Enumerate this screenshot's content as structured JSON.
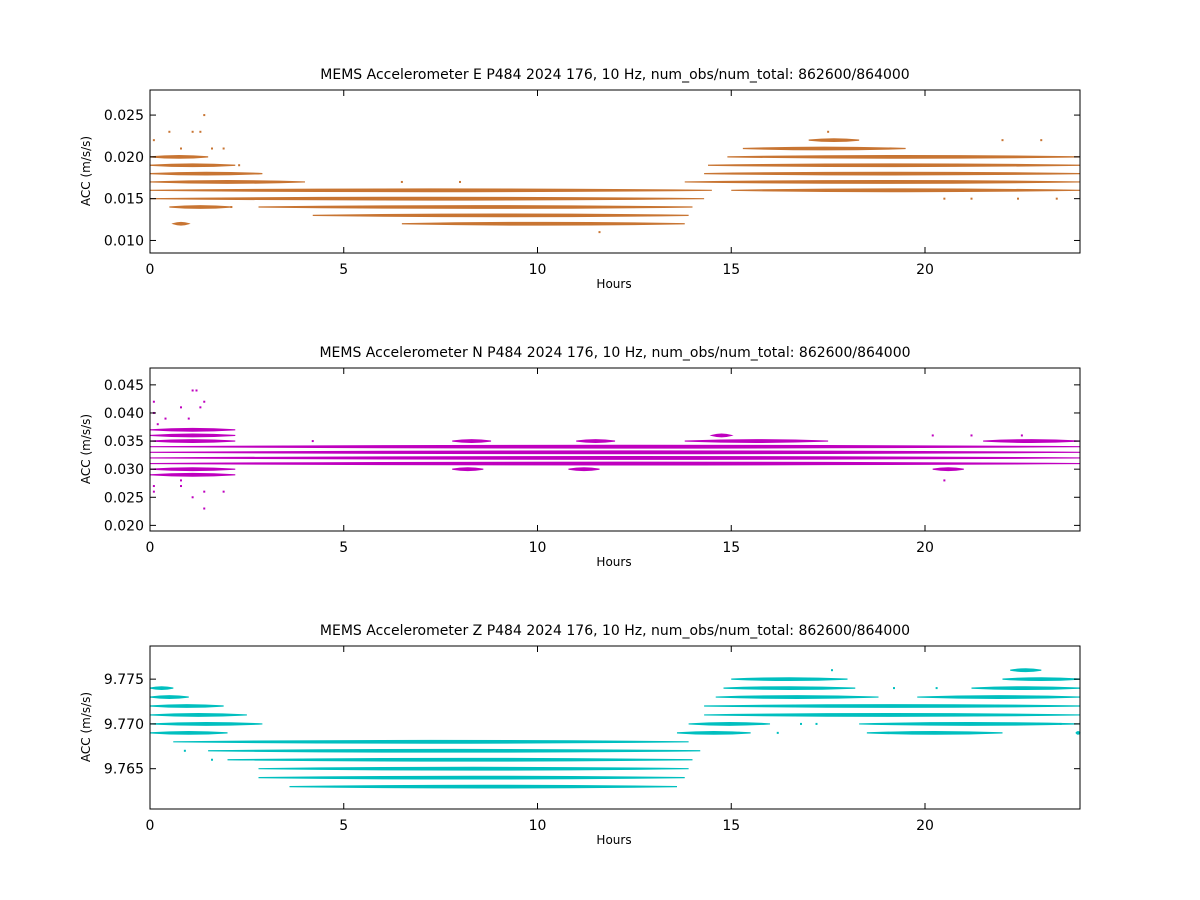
{
  "chart_data": [
    {
      "type": "scatter",
      "title": "MEMS Accelerometer E P484 2024 176, 10 Hz, num_obs/num_total: 862600/864000",
      "xlabel": "Hours",
      "ylabel": "ACC (m/s/s)",
      "xlim": [
        0,
        24
      ],
      "ylim": [
        0.0085,
        0.028
      ],
      "xticks": [
        "0",
        "5",
        "10",
        "15",
        "20"
      ],
      "yticks": [
        "0.010",
        "0.015",
        "0.020",
        "0.025"
      ],
      "color": "#c87533",
      "bands": [
        {
          "y": 0.012,
          "segments": [
            [
              0.6,
              1.0
            ],
            [
              6.5,
              13.8
            ]
          ]
        },
        {
          "y": 0.013,
          "segments": [
            [
              4.2,
              13.9
            ]
          ]
        },
        {
          "y": 0.014,
          "segments": [
            [
              0.5,
              2.1
            ],
            [
              2.8,
              14.0
            ]
          ]
        },
        {
          "y": 0.015,
          "segments": [
            [
              0.0,
              14.3
            ]
          ]
        },
        {
          "y": 0.016,
          "segments": [
            [
              0.0,
              14.5
            ],
            [
              15.0,
              24.0
            ]
          ]
        },
        {
          "y": 0.017,
          "segments": [
            [
              0.0,
              4.0
            ],
            [
              13.8,
              24.0
            ]
          ]
        },
        {
          "y": 0.018,
          "segments": [
            [
              0.0,
              2.9
            ],
            [
              14.3,
              24.0
            ]
          ]
        },
        {
          "y": 0.019,
          "segments": [
            [
              0.0,
              2.2
            ],
            [
              14.4,
              24.0
            ]
          ]
        },
        {
          "y": 0.02,
          "segments": [
            [
              0.0,
              1.5
            ],
            [
              14.9,
              24.0
            ]
          ]
        },
        {
          "y": 0.021,
          "segments": [
            [
              15.3,
              19.5
            ]
          ]
        },
        {
          "y": 0.022,
          "segments": [
            [
              17.0,
              18.3
            ]
          ]
        }
      ],
      "scatter": [
        [
          0.1,
          0.022
        ],
        [
          0.5,
          0.023
        ],
        [
          0.8,
          0.021
        ],
        [
          1.1,
          0.023
        ],
        [
          1.3,
          0.023
        ],
        [
          1.4,
          0.025
        ],
        [
          1.6,
          0.021
        ],
        [
          1.9,
          0.021
        ],
        [
          2.3,
          0.019
        ],
        [
          2.1,
          0.014
        ],
        [
          0.9,
          0.012
        ],
        [
          11.6,
          0.011
        ],
        [
          17.5,
          0.023
        ],
        [
          22.0,
          0.022
        ],
        [
          23.0,
          0.022
        ],
        [
          19.6,
          0.016
        ],
        [
          20.5,
          0.015
        ],
        [
          21.2,
          0.015
        ],
        [
          22.4,
          0.015
        ],
        [
          23.4,
          0.015
        ],
        [
          6.5,
          0.017
        ],
        [
          8.0,
          0.017
        ],
        [
          10.5,
          0.016
        ]
      ]
    },
    {
      "type": "scatter",
      "title": "MEMS Accelerometer N P484 2024 176, 10 Hz, num_obs/num_total: 862600/864000",
      "xlabel": "Hours",
      "ylabel": "ACC (m/s/s)",
      "xlim": [
        0,
        24
      ],
      "ylim": [
        0.019,
        0.048
      ],
      "xticks": [
        "0",
        "5",
        "10",
        "15",
        "20"
      ],
      "yticks": [
        "0.020",
        "0.025",
        "0.030",
        "0.035",
        "0.040",
        "0.045"
      ],
      "color": "#bf00bf",
      "bands": [
        {
          "y": 0.029,
          "segments": [
            [
              0.0,
              2.2
            ]
          ]
        },
        {
          "y": 0.03,
          "segments": [
            [
              0.0,
              2.2
            ],
            [
              7.8,
              8.6
            ],
            [
              10.8,
              11.6
            ],
            [
              20.2,
              21.0
            ]
          ]
        },
        {
          "y": 0.031,
          "segments": [
            [
              0.0,
              24.0
            ]
          ]
        },
        {
          "y": 0.032,
          "segments": [
            [
              0.0,
              24.0
            ]
          ]
        },
        {
          "y": 0.033,
          "segments": [
            [
              0.0,
              24.0
            ]
          ]
        },
        {
          "y": 0.034,
          "segments": [
            [
              0.0,
              24.0
            ]
          ]
        },
        {
          "y": 0.035,
          "segments": [
            [
              0.0,
              2.2
            ],
            [
              7.8,
              8.8
            ],
            [
              11.0,
              12.0
            ],
            [
              13.8,
              17.5
            ],
            [
              21.5,
              24.0
            ]
          ]
        },
        {
          "y": 0.036,
          "segments": [
            [
              0.0,
              2.2
            ],
            [
              14.5,
              15.0
            ]
          ]
        },
        {
          "y": 0.037,
          "segments": [
            [
              0.0,
              2.2
            ]
          ]
        }
      ],
      "scatter": [
        [
          0.1,
          0.042
        ],
        [
          0.1,
          0.04
        ],
        [
          0.4,
          0.039
        ],
        [
          0.8,
          0.041
        ],
        [
          1.1,
          0.044
        ],
        [
          1.2,
          0.044
        ],
        [
          1.4,
          0.042
        ],
        [
          1.3,
          0.041
        ],
        [
          1.0,
          0.039
        ],
        [
          0.2,
          0.038
        ],
        [
          0.8,
          0.028
        ],
        [
          0.8,
          0.027
        ],
        [
          1.1,
          0.025
        ],
        [
          1.4,
          0.026
        ],
        [
          1.4,
          0.023
        ],
        [
          1.9,
          0.026
        ],
        [
          0.1,
          0.026
        ],
        [
          0.1,
          0.027
        ],
        [
          20.2,
          0.036
        ],
        [
          20.5,
          0.028
        ],
        [
          21.2,
          0.036
        ],
        [
          22.5,
          0.036
        ],
        [
          4.2,
          0.035
        ]
      ]
    },
    {
      "type": "scatter",
      "title": "MEMS Accelerometer Z P484 2024 176, 10 Hz, num_obs/num_total: 862600/864000",
      "xlabel": "Hours",
      "ylabel": "ACC (m/s/s)",
      "xlim": [
        0,
        24
      ],
      "ylim": [
        9.7605,
        9.7787
      ],
      "xticks": [
        "0",
        "5",
        "10",
        "15",
        "20"
      ],
      "yticks": [
        "9.765",
        "9.770",
        "9.775"
      ],
      "color": "#00bfbf",
      "bands": [
        {
          "y": 9.763,
          "segments": [
            [
              3.6,
              13.6
            ]
          ]
        },
        {
          "y": 9.764,
          "segments": [
            [
              2.8,
              13.8
            ]
          ]
        },
        {
          "y": 9.765,
          "segments": [
            [
              2.8,
              13.9
            ]
          ]
        },
        {
          "y": 9.766,
          "segments": [
            [
              2.0,
              14.0
            ]
          ]
        },
        {
          "y": 9.767,
          "segments": [
            [
              1.5,
              14.2
            ]
          ]
        },
        {
          "y": 9.768,
          "segments": [
            [
              0.6,
              13.9
            ]
          ]
        },
        {
          "y": 9.769,
          "segments": [
            [
              0.0,
              2.0
            ],
            [
              13.6,
              15.5
            ],
            [
              18.5,
              22.0
            ],
            [
              23.9,
              24.0
            ]
          ]
        },
        {
          "y": 9.77,
          "segments": [
            [
              0.0,
              2.9
            ],
            [
              13.9,
              16.0
            ],
            [
              18.3,
              24.0
            ]
          ]
        },
        {
          "y": 9.771,
          "segments": [
            [
              0.0,
              2.5
            ],
            [
              14.3,
              24.0
            ]
          ]
        },
        {
          "y": 9.772,
          "segments": [
            [
              0.0,
              1.9
            ],
            [
              14.3,
              24.0
            ]
          ]
        },
        {
          "y": 9.773,
          "segments": [
            [
              0.0,
              1.0
            ],
            [
              14.6,
              18.8
            ],
            [
              19.8,
              24.0
            ]
          ]
        },
        {
          "y": 9.774,
          "segments": [
            [
              0.0,
              0.6
            ],
            [
              14.8,
              18.2
            ],
            [
              21.2,
              24.0
            ]
          ]
        },
        {
          "y": 9.775,
          "segments": [
            [
              15.0,
              18.0
            ],
            [
              22.0,
              24.0
            ]
          ]
        },
        {
          "y": 9.776,
          "segments": [
            [
              22.2,
              23.0
            ]
          ]
        }
      ],
      "scatter": [
        [
          0.9,
          9.767
        ],
        [
          1.6,
          9.766
        ],
        [
          17.6,
          9.776
        ],
        [
          15.2,
          9.769
        ],
        [
          16.2,
          9.769
        ],
        [
          16.8,
          9.77
        ],
        [
          17.2,
          9.77
        ],
        [
          23.5,
          9.77
        ],
        [
          19.2,
          9.774
        ],
        [
          20.3,
          9.774
        ]
      ]
    }
  ]
}
